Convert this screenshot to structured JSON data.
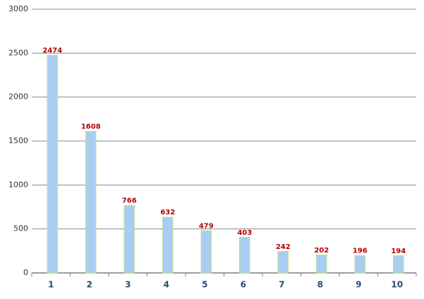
{
  "chart_data": {
    "type": "bar",
    "categories": [
      "1",
      "2",
      "3",
      "4",
      "5",
      "6",
      "7",
      "8",
      "9",
      "10"
    ],
    "values": [
      2474,
      1608,
      766,
      632,
      479,
      403,
      242,
      202,
      196,
      194
    ],
    "color": "#a8cdf3",
    "edge_color": "#b8dca8",
    "label_color": "#b00000",
    "ylim": [
      0,
      3000
    ],
    "yticks": [
      0,
      500,
      1000,
      1500,
      2000,
      2500,
      3000
    ],
    "grid": true
  }
}
